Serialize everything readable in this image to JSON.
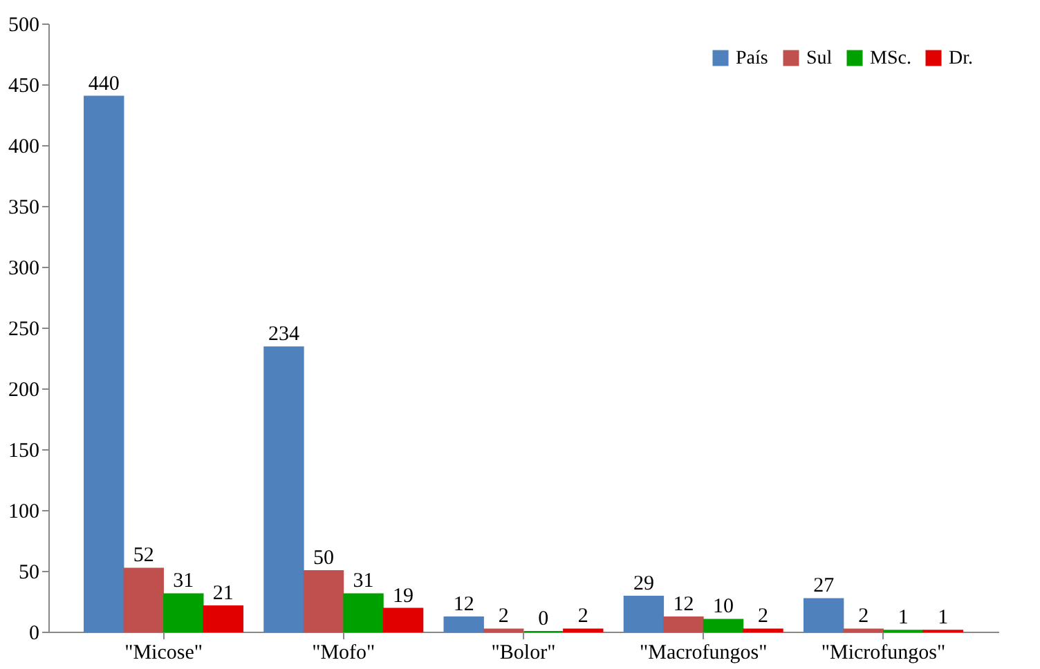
{
  "chart_data": {
    "type": "bar",
    "categories": [
      "\"Micose\"",
      "\"Mofo\"",
      "\"Bolor\"",
      "\"Macrofungos\"",
      "\"Microfungos\""
    ],
    "series": [
      {
        "name": "País",
        "color": "#4f81bd",
        "values": [
          440,
          234,
          12,
          29,
          27
        ]
      },
      {
        "name": "Sul",
        "color": "#c0504d",
        "values": [
          52,
          50,
          2,
          12,
          2
        ]
      },
      {
        "name": "MSc.",
        "color": "#00a000",
        "values": [
          31,
          31,
          0,
          10,
          1
        ]
      },
      {
        "name": "Dr.",
        "color": "#e00000",
        "values": [
          21,
          19,
          2,
          2,
          1
        ]
      }
    ],
    "ylim": [
      0,
      500
    ],
    "yticks": [
      0,
      50,
      100,
      150,
      200,
      250,
      300,
      350,
      400,
      450,
      500
    ],
    "grid": false,
    "legend": "top right",
    "data_labels": true
  }
}
